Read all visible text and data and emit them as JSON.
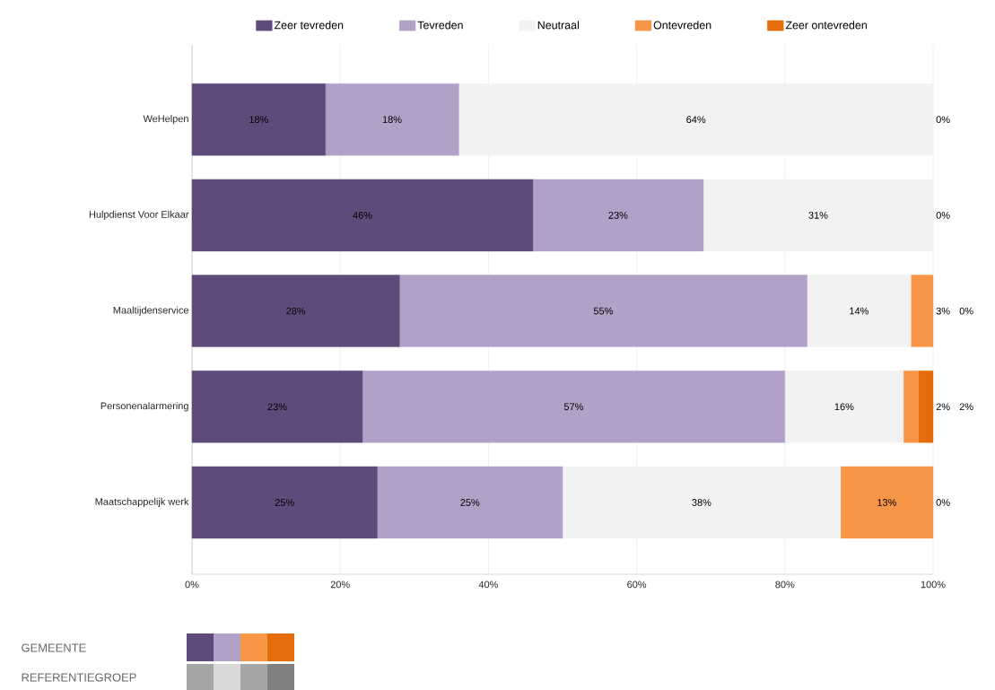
{
  "chart_data": {
    "type": "bar",
    "orientation": "horizontal",
    "stacked": true,
    "categories": [
      "WeHelpen",
      "Hulpdienst Voor Elkaar",
      "Maaltijdenservice",
      "Personenalarmering",
      "Maatschappelijk werk"
    ],
    "series": [
      {
        "name": "Zeer tevreden",
        "color": "#604a7b",
        "values": [
          18,
          46,
          28,
          23,
          25
        ],
        "value_labels": [
          "18%",
          "46%",
          "28%",
          "23%",
          "25%"
        ]
      },
      {
        "name": "Tevreden",
        "color": "#b2a1c7",
        "values": [
          18,
          23,
          55,
          57,
          25
        ],
        "value_labels": [
          "18%",
          "23%",
          "55%",
          "57%",
          "25%"
        ]
      },
      {
        "name": "Neutraal",
        "color": "#f2f2f2",
        "values": [
          64,
          31,
          14,
          16,
          37.5
        ],
        "value_labels": [
          "64%",
          "31%",
          "14%",
          "16%",
          "38%"
        ]
      },
      {
        "name": "Ontevreden",
        "color": "#f79646",
        "values": [
          0,
          0,
          3,
          2,
          12.5
        ],
        "value_labels": [
          null,
          null,
          "3%",
          "2%",
          "13%"
        ]
      },
      {
        "name": "Zeer ontevreden",
        "color": "#e46c0a",
        "values": [
          0,
          0,
          0,
          2,
          0
        ],
        "value_labels": [
          "0%",
          "0%",
          "0%",
          "2%",
          "0%"
        ]
      }
    ],
    "xlim": [
      0,
      100
    ],
    "xticks": [
      {
        "value": 0,
        "label": "0%"
      },
      {
        "value": 20,
        "label": "20%"
      },
      {
        "value": 40,
        "label": "40%"
      },
      {
        "value": 60,
        "label": "60%"
      },
      {
        "value": 80,
        "label": "80%"
      },
      {
        "value": 100,
        "label": "100%"
      }
    ],
    "grid": "x",
    "legend": "top",
    "annotations": [
      "GEMEENTE",
      "REFERENTIEGROEP"
    ]
  }
}
